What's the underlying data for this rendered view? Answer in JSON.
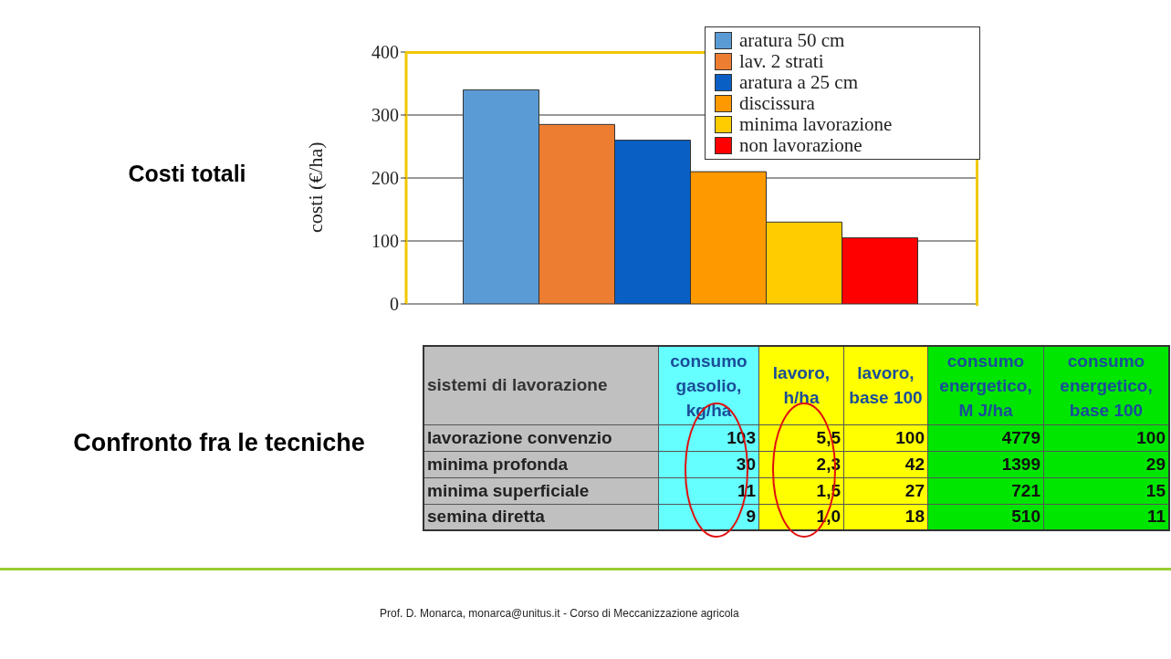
{
  "chart_data": [
    {
      "type": "bar",
      "title": "Costi totali",
      "ylabel": "costi (€/ha)",
      "categories": [
        null
      ],
      "series": [
        {
          "name": "aratura 50 cm",
          "color": "#5b9bd5",
          "values": [
            340
          ]
        },
        {
          "name": "lav. 2 strati",
          "color": "#ed7d31",
          "values": [
            285
          ]
        },
        {
          "name": "aratura a 25 cm",
          "color": "#0a5fc4",
          "values": [
            260
          ]
        },
        {
          "name": "discissura",
          "color": "#ff9900",
          "values": [
            210
          ]
        },
        {
          "name": "minima lavorazione",
          "color": "#ffcc00",
          "values": [
            130
          ]
        },
        {
          "name": "non lavorazione",
          "color": "#ff0000",
          "values": [
            105
          ]
        }
      ],
      "ylim": [
        0,
        400
      ],
      "yticks": [
        0,
        100,
        200,
        300,
        400
      ],
      "grid": "y",
      "legend": "top right",
      "tick_labels": "y"
    },
    {
      "type": "other",
      "title": "Confronto fra le tecniche",
      "xlabel": "sistemi di lavorazione",
      "data_labels": true,
      "categories": [
        "lavorazione convenzio",
        "minima profonda",
        "minima superficiale",
        "semina diretta"
      ],
      "series": [
        {
          "name": "consumo gasolio, kg/ha",
          "color": "#66ffff",
          "values": [
            103,
            30,
            11,
            9
          ]
        },
        {
          "name": "lavoro, h/ha",
          "color": "#ffff00",
          "values": [
            5.5,
            2.3,
            1.5,
            1.0
          ],
          "value_labels": [
            "5,5",
            "2,3",
            "1,5",
            "1,0"
          ]
        },
        {
          "name": "lavoro, base 100",
          "color": "#ffff00",
          "values": [
            100,
            42,
            27,
            18
          ]
        },
        {
          "name": "consumo energetico, M J/ha",
          "color": "#00e600",
          "values": [
            4779,
            1399,
            721,
            510
          ]
        },
        {
          "name": "consumo energetico, base 100",
          "color": "#00e600",
          "values": [
            100,
            29,
            15,
            11
          ]
        }
      ],
      "annotations": [
        "Prof. D. Monarca, monarca@unitus.it - Corso di Meccanizzazione agricola"
      ]
    }
  ]
}
